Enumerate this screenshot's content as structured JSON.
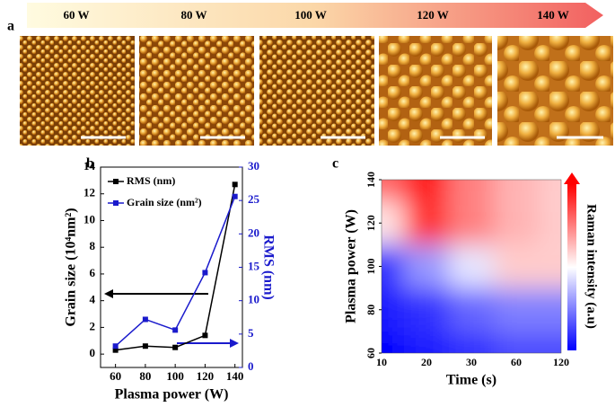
{
  "panel_labels": [
    "a",
    "b",
    "c"
  ],
  "power_labels": [
    "60 W",
    "80 W",
    "100 W",
    "120 W",
    "140 W"
  ],
  "chart_data": [
    {
      "type": "line",
      "x": [
        60,
        80,
        100,
        120,
        140
      ],
      "xlim": [
        50,
        145
      ],
      "xticks": [
        60,
        80,
        100,
        120,
        140
      ],
      "ylim": [
        -1,
        14
      ],
      "yticks": [
        0,
        2,
        4,
        6,
        8,
        10,
        12,
        14
      ],
      "y2lim": [
        0,
        30
      ],
      "y2ticks": [
        0,
        5,
        10,
        15,
        20,
        25,
        30
      ],
      "x_label": "Plasma power (W)",
      "y_label": "Grain size (10⁴nm²)",
      "y2_label": "RMS (nm)",
      "legend": "upper left",
      "series": [
        {
          "name": "RMS (nm)",
          "color": "#000000",
          "values": [
            0.3,
            0.6,
            0.5,
            1.4,
            12.7
          ]
        },
        {
          "name": "Grain size (nm²)",
          "color": "#1a1acc",
          "axis": "y2",
          "values": [
            3.2,
            7.2,
            5.6,
            14.2,
            25.6
          ]
        }
      ]
    },
    {
      "type": "heatmap",
      "categories": [
        10,
        20,
        30,
        60,
        120
      ],
      "y": [
        60,
        80,
        100,
        120,
        140
      ],
      "ylim": [
        60,
        140
      ],
      "yticks": [
        60,
        80,
        100,
        120,
        140
      ],
      "z": [
        [
          0.0,
          0.05,
          0.1,
          0.15,
          0.15
        ],
        [
          0.05,
          0.1,
          0.2,
          0.25,
          0.25
        ],
        [
          0.1,
          0.3,
          0.45,
          0.6,
          0.6
        ],
        [
          0.55,
          0.9,
          0.75,
          0.65,
          0.6
        ],
        [
          0.8,
          0.95,
          0.75,
          0.65,
          0.6
        ]
      ],
      "zlim": [
        0,
        1
      ],
      "colors": [
        "#0000ff",
        "#ffffff",
        "#ff0000"
      ],
      "x_label": "Time (s)",
      "y_label": "Plasma power (W)",
      "colorbar_label": "Raman intensity (a.u)"
    }
  ]
}
